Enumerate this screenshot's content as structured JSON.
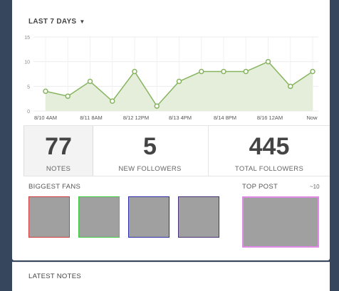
{
  "header": {
    "period_label": "LAST 7 DAYS"
  },
  "chart_data": {
    "type": "area",
    "y_ticks": [
      "15",
      "10",
      "5",
      "0"
    ],
    "ylim": [
      0,
      15
    ],
    "x_labels": [
      "8/10 4AM",
      "8/11 8AM",
      "8/12 12PM",
      "8/13 4PM",
      "8/14 8PM",
      "8/16 12AM",
      "Now"
    ],
    "values": [
      4,
      3,
      6,
      2,
      8,
      1,
      6,
      8,
      8,
      8,
      10,
      5,
      8
    ],
    "color": "#86b45f"
  },
  "stats": {
    "notes": {
      "value": "77",
      "label": "NOTES"
    },
    "new_followers": {
      "value": "5",
      "label": "NEW FOLLOWERS"
    },
    "total_followers": {
      "value": "445",
      "label": "TOTAL FOLLOWERS"
    }
  },
  "fans": {
    "title": "BIGGEST FANS",
    "border_colors": [
      "#d43b3b",
      "#3fcd3f",
      "#2d2da8",
      "#4a3078"
    ]
  },
  "top_post": {
    "title": "TOP POST",
    "count": "~10"
  },
  "latest": {
    "title": "LATEST NOTES"
  }
}
